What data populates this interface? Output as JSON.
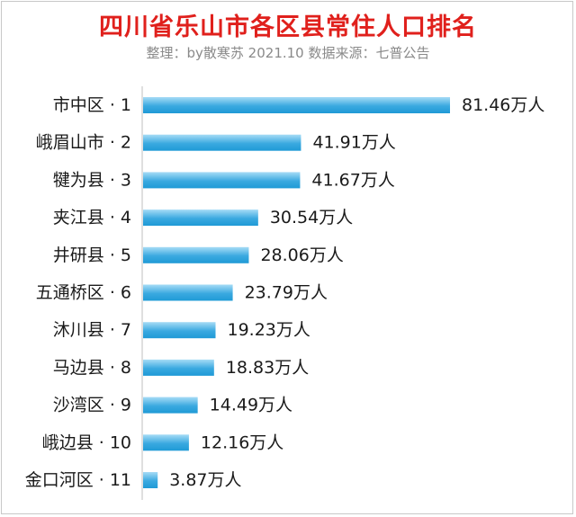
{
  "title": "四川省乐山市各区县常住人口排名",
  "subtitle": "整理：by散寒苏  2021.10  数据来源：七普公告",
  "colors": {
    "title": "#e0201c",
    "subtitle": "#8a8a8a",
    "bar_light": "#a6dcf6",
    "bar_dark": "#1f9ad6",
    "axis": "#bfbfbf",
    "label": "#1a1a1a"
  },
  "chart_data": {
    "type": "bar",
    "orientation": "horizontal",
    "title": "四川省乐山市各区县常住人口排名",
    "unit": "万人",
    "categories": [
      "市中区 · 1",
      "峨眉山市 · 2",
      "犍为县 · 3",
      "夹江县 · 4",
      "井研县 · 5",
      "五通桥区 · 6",
      "沐川县 · 7",
      "马边县 · 8",
      "沙湾区 · 9",
      "峨边县 · 10",
      "金口河区 · 11"
    ],
    "values": [
      81.46,
      41.91,
      41.67,
      30.54,
      28.06,
      23.79,
      19.23,
      18.83,
      14.49,
      12.16,
      3.87
    ],
    "value_labels": [
      "81.46万人",
      "41.91万人",
      "41.67万人",
      "30.54万人",
      "28.06万人",
      "23.79万人",
      "19.23万人",
      "18.83万人",
      "14.49万人",
      "12.16万人",
      "3.87万人"
    ],
    "xlim": [
      0,
      81.46
    ],
    "grid": false,
    "legend": "none"
  }
}
